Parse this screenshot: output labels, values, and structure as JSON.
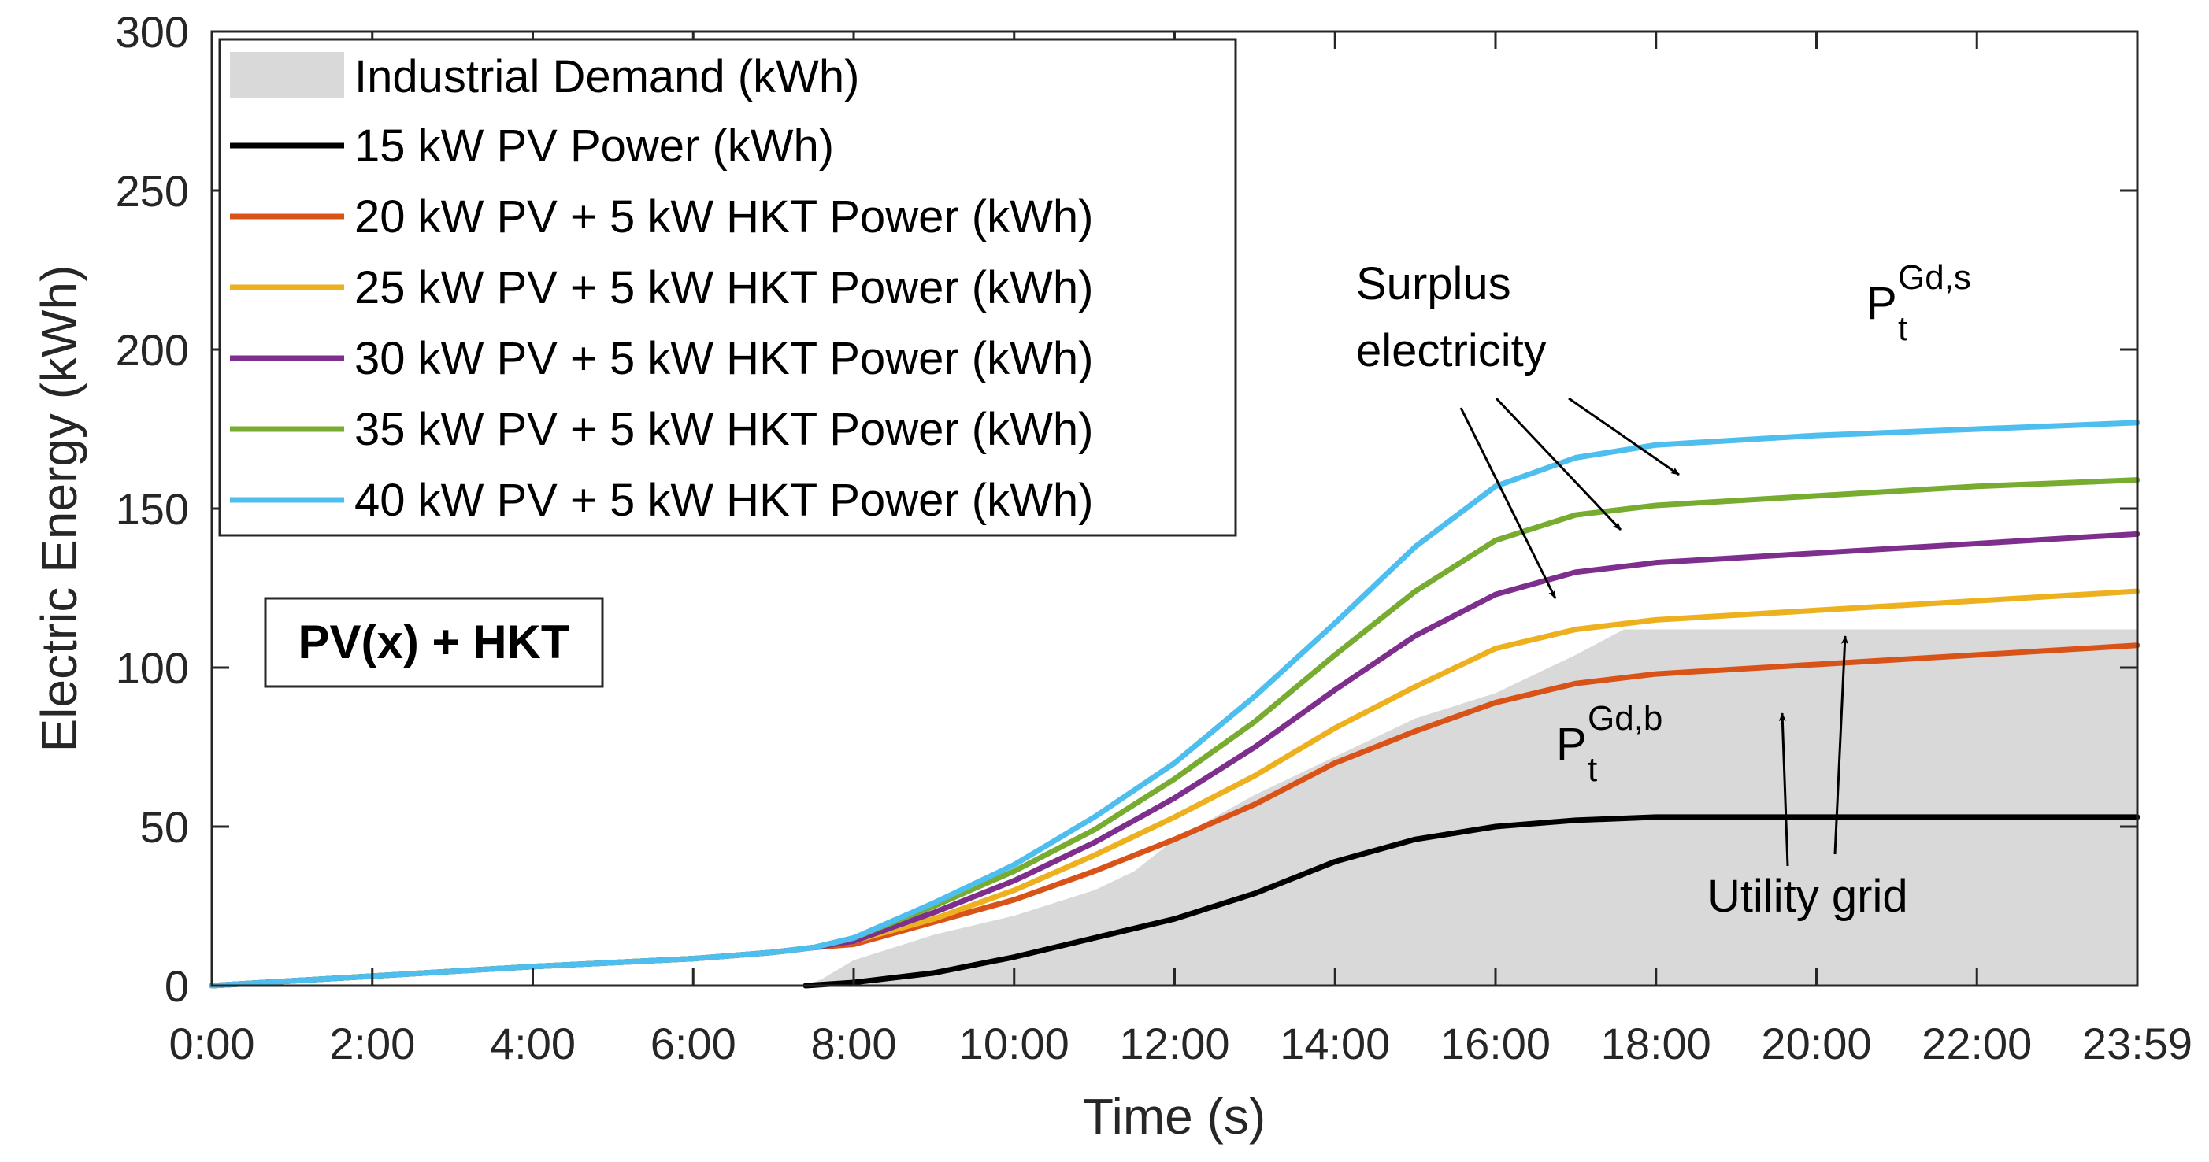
{
  "chart_data": {
    "type": "line",
    "title": "",
    "xlabel": "Time (s)",
    "ylabel": "Electric Energy (kWh)",
    "xlim": [
      0,
      24
    ],
    "ylim": [
      0,
      300
    ],
    "x_ticks": [
      0,
      2,
      4,
      6,
      8,
      10,
      12,
      14,
      16,
      18,
      20,
      22,
      24
    ],
    "x_tick_labels": [
      "0:00",
      "2:00",
      "4:00",
      "6:00",
      "8:00",
      "10:00",
      "12:00",
      "14:00",
      "16:00",
      "18:00",
      "20:00",
      "22:00",
      "23:59"
    ],
    "y_ticks": [
      0,
      50,
      100,
      150,
      200,
      250,
      300
    ],
    "y_tick_labels": [
      "0",
      "50",
      "100",
      "150",
      "200",
      "250",
      "300"
    ],
    "grid": false,
    "legend_position": "top-left",
    "area": {
      "name": "Industrial Demand (kWh)",
      "color": "#d9d9d9",
      "x": [
        7.4,
        7.6,
        8,
        9,
        10,
        11,
        11.5,
        12,
        13,
        14,
        15,
        16,
        17,
        17.6,
        18,
        20,
        22,
        24
      ],
      "y": [
        0,
        2,
        8,
        16,
        22,
        30,
        36,
        46,
        60,
        72,
        84,
        92,
        104,
        112,
        112,
        112,
        112,
        112
      ]
    },
    "series": [
      {
        "name": "15 kW PV Power (kWh)",
        "color": "#000000",
        "x": [
          7.4,
          8,
          9,
          10,
          11,
          12,
          13,
          14,
          15,
          16,
          17,
          18,
          20,
          22,
          24
        ],
        "y": [
          0,
          1,
          4,
          9,
          15,
          21,
          29,
          39,
          46,
          50,
          52,
          53,
          53,
          53,
          53
        ]
      },
      {
        "name": "20 kW PV + 5 kW HKT Power (kWh)",
        "color": "#d95319",
        "x": [
          0,
          2,
          4,
          6,
          7,
          7.5,
          8,
          9,
          10,
          11,
          12,
          13,
          14,
          15,
          16,
          17,
          18,
          20,
          22,
          24
        ],
        "y": [
          0,
          3,
          6,
          8.5,
          10.5,
          12,
          13,
          20,
          27,
          36,
          46,
          57,
          70,
          80,
          89,
          95,
          98,
          101,
          104,
          107
        ]
      },
      {
        "name": "25 kW PV + 5 kW HKT Power (kWh)",
        "color": "#edb120",
        "x": [
          0,
          2,
          4,
          6,
          7,
          7.5,
          8,
          9,
          10,
          11,
          12,
          13,
          14,
          15,
          16,
          17,
          18,
          20,
          22,
          24
        ],
        "y": [
          0,
          3,
          6,
          8.5,
          10.5,
          12,
          14,
          21,
          30,
          41,
          53,
          66,
          81,
          94,
          106,
          112,
          115,
          118,
          121,
          124
        ]
      },
      {
        "name": "30 kW PV + 5 kW HKT Power (kWh)",
        "color": "#7e2f8e",
        "x": [
          0,
          2,
          4,
          6,
          7,
          7.5,
          8,
          9,
          10,
          11,
          12,
          13,
          14,
          15,
          16,
          17,
          18,
          20,
          22,
          24
        ],
        "y": [
          0,
          3,
          6,
          8.5,
          10.5,
          12,
          14,
          23,
          33,
          45,
          59,
          75,
          93,
          110,
          123,
          130,
          133,
          136,
          139,
          142
        ]
      },
      {
        "name": "35 kW PV + 5 kW HKT Power (kWh)",
        "color": "#77ac30",
        "x": [
          0,
          2,
          4,
          6,
          7,
          7.5,
          8,
          9,
          10,
          11,
          12,
          13,
          14,
          15,
          16,
          17,
          18,
          20,
          22,
          24
        ],
        "y": [
          0,
          3,
          6,
          8.5,
          10.5,
          12,
          15,
          25,
          36,
          49,
          65,
          83,
          104,
          124,
          140,
          148,
          151,
          154,
          157,
          159
        ]
      },
      {
        "name": "40 kW PV + 5 kW HKT Power (kWh)",
        "color": "#4dbeee",
        "x": [
          0,
          2,
          4,
          6,
          7,
          7.5,
          8,
          9,
          10,
          11,
          12,
          13,
          14,
          15,
          16,
          17,
          18,
          20,
          22,
          24
        ],
        "y": [
          0,
          3,
          6,
          8.5,
          10.5,
          12,
          15,
          26,
          38,
          53,
          70,
          91,
          114,
          138,
          157,
          166,
          170,
          173,
          175,
          177
        ]
      }
    ],
    "annotations": {
      "surplus_line1": "Surplus",
      "surplus_line2": "electricity",
      "utility_grid": "Utility grid",
      "p_sell_main": "P",
      "p_sell_sup": "Gd,s",
      "p_sell_sub": "t",
      "p_buy_main": "P",
      "p_buy_sup": "Gd,b",
      "p_buy_sub": "t",
      "box_label": "PV(x) + HKT"
    }
  }
}
